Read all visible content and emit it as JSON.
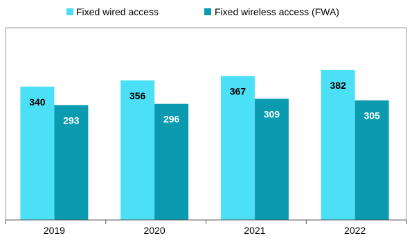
{
  "chart_data": {
    "type": "bar",
    "title": "",
    "xlabel": "",
    "ylabel": "",
    "categories": [
      "2019",
      "2020",
      "2021",
      "2022"
    ],
    "series": [
      {
        "name": "Fixed wired access",
        "values": [
          340,
          356,
          367,
          382
        ],
        "color": "#4ce0f7"
      },
      {
        "name": "Fixed wireless access (FWA)",
        "values": [
          293,
          296,
          309,
          305
        ],
        "color": "#0a9bb0"
      }
    ],
    "ylim": [
      0,
      490
    ],
    "grid": false,
    "legend_position": "top-center",
    "data_labels": true,
    "label_colors": [
      "#000000",
      "#ffffff"
    ]
  }
}
